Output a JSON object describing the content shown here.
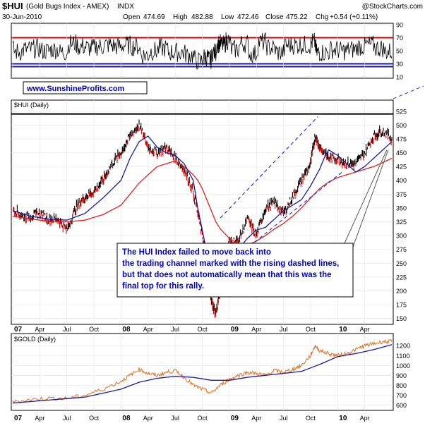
{
  "header": {
    "symbol": "$HUI",
    "name": "(Gold Bugs Index - AMEX)",
    "exchange": "INDX",
    "credit": "@StockCharts.com",
    "date": "30-Jun-2010",
    "open_label": "Open",
    "open": "474.69",
    "high_label": "High",
    "high": "482.88",
    "low_label": "Low",
    "low": "472.46",
    "close_label": "Close",
    "close": "475.22",
    "chg_label": "Chg",
    "chg": "+0.54 (+0.11%)"
  },
  "watermark": "www.SunshineProfits.com",
  "annotation": "The HUI Index failed to move back into the trading channel marked with the rising dashed lines, but that does not automatically mean that this was the final top for this rally.",
  "colors": {
    "price_up": "#000000",
    "price_down": "#cc0000",
    "ma_short": "#1a1aa0",
    "ma_long": "#e02020",
    "channel": "#2233dd",
    "rsi_line": "#000000",
    "rsi_70": "#cc0000",
    "rsi_30": "#1a1aa0",
    "gold_line": "#e07020",
    "gold_ma": "#1a1aa0",
    "watermark": "#0000cc",
    "annotation_text": "#0000cc"
  },
  "chart_data": [
    {
      "type": "line",
      "panel": "rsi",
      "ylim": [
        10,
        90
      ],
      "yticks": [
        10,
        30,
        50,
        70,
        90
      ],
      "reference_lines": [
        70,
        30
      ],
      "label": ""
    },
    {
      "type": "line",
      "panel": "price",
      "title": "$HUI (Daily)",
      "ylim": [
        142,
        540
      ],
      "yticks": [
        150,
        175,
        200,
        225,
        250,
        275,
        300,
        325,
        350,
        375,
        400,
        425,
        450,
        475,
        500,
        525
      ],
      "resistance": 520,
      "x_labels": [
        "07",
        "Apr",
        "Jul",
        "Oct",
        "08",
        "Apr",
        "Jul",
        "Oct",
        "09",
        "Apr",
        "Jul",
        "Oct",
        "10",
        "Apr"
      ],
      "x_label_positions": [
        0,
        3,
        6,
        9,
        12,
        15,
        18,
        21,
        24,
        27,
        30,
        33,
        36,
        39
      ],
      "xlim": [
        0,
        42
      ],
      "series": [
        {
          "kind": "price",
          "x": [
            0,
            1,
            2,
            3,
            4,
            5,
            6,
            7,
            8,
            9,
            10,
            11,
            12,
            13,
            14,
            15,
            16,
            17,
            18,
            19,
            20,
            21,
            21.6,
            22,
            22.5,
            23,
            23.5,
            24,
            25,
            26,
            27,
            28,
            29,
            30,
            31,
            32,
            33,
            33.5,
            34,
            35,
            36,
            37,
            38,
            39,
            40,
            41,
            42
          ],
          "values": [
            350,
            335,
            335,
            340,
            330,
            330,
            310,
            350,
            370,
            380,
            400,
            430,
            450,
            480,
            500,
            460,
            450,
            460,
            440,
            420,
            380,
            300,
            250,
            180,
            160,
            200,
            230,
            290,
            290,
            330,
            300,
            350,
            360,
            340,
            370,
            400,
            430,
            480,
            460,
            440,
            440,
            430,
            430,
            450,
            480,
            490,
            475
          ]
        },
        {
          "name": "",
          "kind": "ma_short",
          "x": [
            0,
            2,
            4,
            6,
            8,
            10,
            12,
            13,
            14,
            15,
            16,
            17,
            18,
            19,
            20,
            20.5,
            21,
            21.5,
            22,
            22.5,
            23,
            23.5,
            24,
            25,
            26,
            27,
            28,
            29,
            30,
            31,
            32,
            33,
            34,
            34.5,
            35,
            36,
            37,
            38,
            39,
            40,
            41,
            42
          ],
          "values": [
            345,
            335,
            330,
            328,
            340,
            368,
            400,
            440,
            470,
            480,
            460,
            450,
            445,
            430,
            400,
            350,
            310,
            270,
            240,
            225,
            220,
            225,
            240,
            275,
            295,
            310,
            315,
            330,
            345,
            355,
            365,
            390,
            420,
            440,
            455,
            445,
            430,
            415,
            425,
            440,
            455,
            470
          ]
        },
        {
          "name": "",
          "kind": "ma_long",
          "x": [
            0,
            2,
            4,
            6,
            8,
            10,
            12,
            14,
            15,
            16,
            17,
            18,
            19,
            20,
            20.5,
            21,
            21.5,
            22,
            22.5,
            23,
            24,
            25,
            26,
            27,
            28,
            29,
            30,
            31,
            32,
            33,
            34,
            35,
            36,
            37,
            38,
            39,
            40,
            41,
            42
          ],
          "values": [
            335,
            330,
            326,
            325,
            328,
            338,
            355,
            395,
            410,
            425,
            430,
            435,
            425,
            410,
            400,
            385,
            365,
            345,
            325,
            312,
            295,
            285,
            283,
            290,
            300,
            312,
            322,
            335,
            350,
            368,
            385,
            397,
            405,
            410,
            415,
            420,
            425,
            432,
            440
          ]
        }
      ],
      "channel": [
        {
          "name": "",
          "x": [
            23,
            33.8
          ],
          "values": [
            332,
            515
          ]
        },
        {
          "name": "",
          "x": [
            23.5,
            36.5
          ],
          "values": [
            245,
            415
          ]
        }
      ]
    },
    {
      "type": "line",
      "panel": "gold",
      "title": "$GOLD (Daily)",
      "ylim": [
        560,
        1280
      ],
      "yticks": [
        600,
        700,
        800,
        900,
        1000,
        1100,
        1200
      ],
      "x_labels": [
        "07",
        "Apr",
        "Jul",
        "Oct",
        "08",
        "Apr",
        "Jul",
        "Oct",
        "09",
        "Apr",
        "Jul",
        "Oct",
        "10",
        "Apr"
      ],
      "x_label_positions": [
        0,
        3,
        6,
        9,
        12,
        15,
        18,
        21,
        24,
        27,
        30,
        33,
        36,
        39
      ],
      "xlim": [
        0,
        42
      ],
      "series": [
        {
          "kind": "gold",
          "x": [
            0,
            2,
            4,
            6,
            8,
            10,
            12,
            13,
            14,
            15,
            16,
            17,
            18,
            19,
            20,
            21,
            22,
            23,
            24,
            25,
            26,
            27,
            28,
            29,
            30,
            31,
            32,
            33,
            33.5,
            34,
            35,
            36,
            37,
            38,
            39,
            40,
            41,
            42
          ],
          "values": [
            630,
            655,
            670,
            665,
            700,
            760,
            840,
            900,
            960,
            920,
            900,
            930,
            950,
            880,
            800,
            760,
            720,
            800,
            860,
            900,
            930,
            920,
            900,
            950,
            930,
            960,
            1000,
            1100,
            1200,
            1150,
            1120,
            1100,
            1120,
            1160,
            1200,
            1220,
            1240,
            1240
          ]
        },
        {
          "name": "",
          "kind": "gold_ma",
          "x": [
            0,
            4,
            8,
            12,
            14,
            16,
            18,
            20,
            22,
            24,
            26,
            28,
            30,
            32,
            34,
            36,
            38,
            40,
            42
          ],
          "values": [
            620,
            650,
            680,
            760,
            830,
            870,
            890,
            880,
            850,
            850,
            880,
            900,
            920,
            940,
            1010,
            1090,
            1120,
            1160,
            1210
          ]
        }
      ]
    }
  ]
}
